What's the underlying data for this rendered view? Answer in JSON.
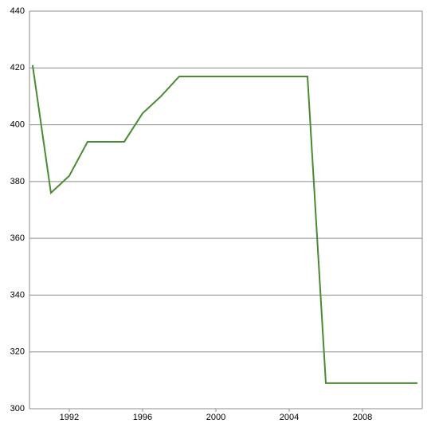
{
  "chart_data": {
    "type": "line",
    "x": [
      1990,
      1991,
      1992,
      1993,
      1994,
      1995,
      1996,
      1997,
      1998,
      1999,
      2000,
      2001,
      2002,
      2003,
      2004,
      2005,
      2006,
      2007,
      2008,
      2009,
      2010,
      2011
    ],
    "series": [
      {
        "color": "#4a8b32",
        "values": [
          421,
          376,
          382,
          394,
          394,
          394,
          404,
          410,
          417,
          417,
          417,
          417,
          417,
          417,
          417,
          417,
          309,
          309,
          309,
          309,
          309,
          309
        ]
      }
    ],
    "xlim": [
      1989.83,
      2011.26
    ],
    "xticks": [
      1992,
      1996,
      2000,
      2004,
      2008
    ],
    "ylim": [
      300,
      440
    ],
    "yticks": [
      300,
      320,
      340,
      360,
      380,
      400,
      420,
      440
    ],
    "grid": true
  }
}
